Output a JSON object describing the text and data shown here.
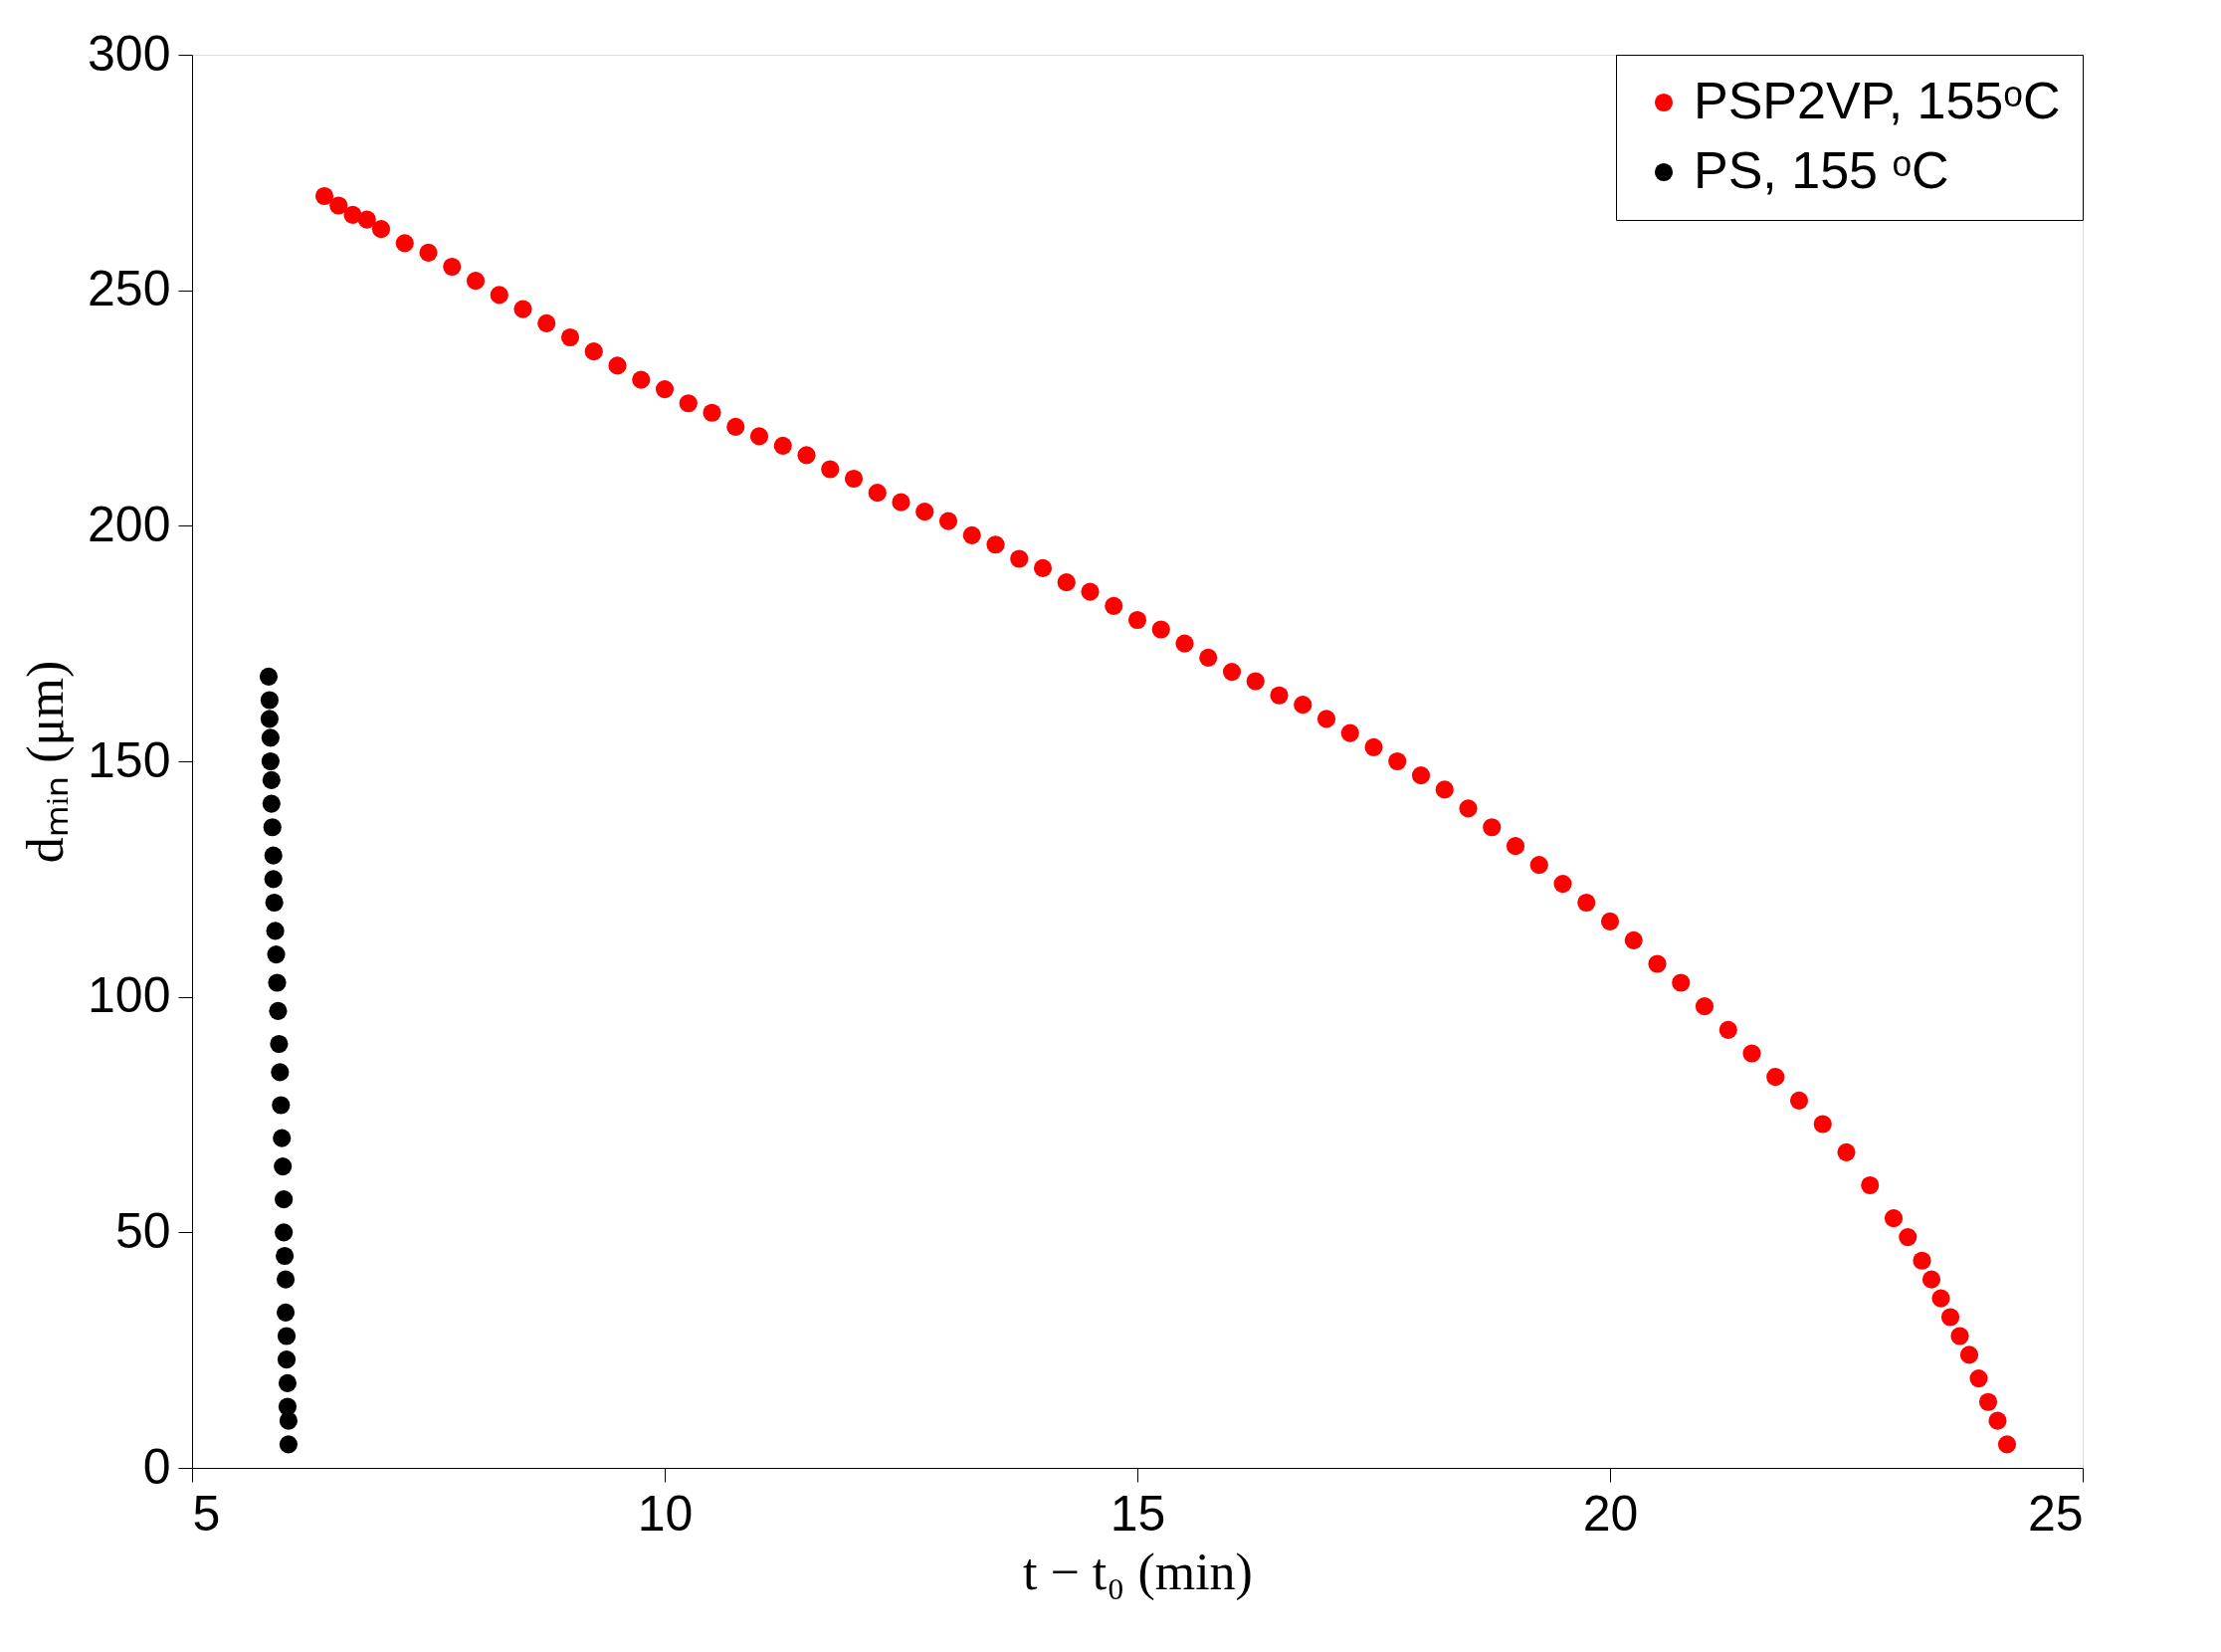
{
  "chart_data": {
    "type": "scatter",
    "xlabel": "t − t₀ (min)",
    "ylabel": "dₘᵢₙ (μm)",
    "xlim": [
      5,
      25
    ],
    "xticks": [
      5,
      10,
      15,
      20,
      25
    ],
    "ylim": [
      0,
      300
    ],
    "yticks": [
      0,
      50,
      100,
      150,
      200,
      250,
      300
    ],
    "grid": false,
    "legend": "top right",
    "marker": "circle",
    "series": [
      {
        "name": "PSP2VP, 155ᵒC",
        "color": "#ff0000",
        "x": [
          6.4,
          6.55,
          6.7,
          6.85,
          7,
          7.25,
          7.5,
          7.75,
          8,
          8.25,
          8.5,
          8.75,
          9,
          9.25,
          9.5,
          9.75,
          10,
          10.25,
          10.5,
          10.75,
          11,
          11.25,
          11.5,
          11.75,
          12,
          12.25,
          12.5,
          12.75,
          13,
          13.25,
          13.5,
          13.75,
          14,
          14.25,
          14.5,
          14.75,
          15,
          15.25,
          15.5,
          15.75,
          16,
          16.25,
          16.5,
          16.75,
          17,
          17.25,
          17.5,
          17.75,
          18,
          18.25,
          18.5,
          18.75,
          19,
          19.25,
          19.5,
          19.75,
          20,
          20.25,
          20.5,
          20.75,
          21,
          21.25,
          21.5,
          21.75,
          22,
          22.25,
          22.5,
          22.75,
          23,
          23.15,
          23.3,
          23.4,
          23.5,
          23.6,
          23.7,
          23.8,
          23.9,
          24,
          24.1,
          24.2
        ],
        "values": [
          270,
          268,
          266,
          265,
          263,
          260,
          258,
          255,
          252,
          249,
          246,
          243,
          240,
          237,
          234,
          231,
          229,
          226,
          224,
          221,
          219,
          217,
          215,
          212,
          210,
          207,
          205,
          203,
          201,
          198,
          196,
          193,
          191,
          188,
          186,
          183,
          180,
          178,
          175,
          172,
          169,
          167,
          164,
          162,
          159,
          156,
          153,
          150,
          147,
          144,
          140,
          136,
          132,
          128,
          124,
          120,
          116,
          112,
          107,
          103,
          98,
          93,
          88,
          83,
          78,
          73,
          67,
          60,
          53,
          49,
          44,
          40,
          36,
          32,
          28,
          24,
          19,
          14,
          10,
          5
        ]
      },
      {
        "name": "PS, 155 ᵒC",
        "color": "#000000",
        "x": [
          5.81,
          5.82,
          5.82,
          5.83,
          5.83,
          5.84,
          5.84,
          5.85,
          5.86,
          5.86,
          5.87,
          5.88,
          5.89,
          5.9,
          5.91,
          5.92,
          5.93,
          5.94,
          5.95,
          5.96,
          5.97,
          5.97,
          5.98,
          5.99,
          5.99,
          6.0,
          6.0,
          6.01,
          6.01,
          6.02,
          6.02
        ],
        "values": [
          168,
          163,
          159,
          155,
          150,
          146,
          141,
          136,
          130,
          125,
          120,
          114,
          109,
          103,
          97,
          90,
          84,
          77,
          70,
          64,
          57,
          50,
          45,
          40,
          33,
          28,
          23,
          18,
          13,
          10,
          5
        ]
      }
    ]
  }
}
